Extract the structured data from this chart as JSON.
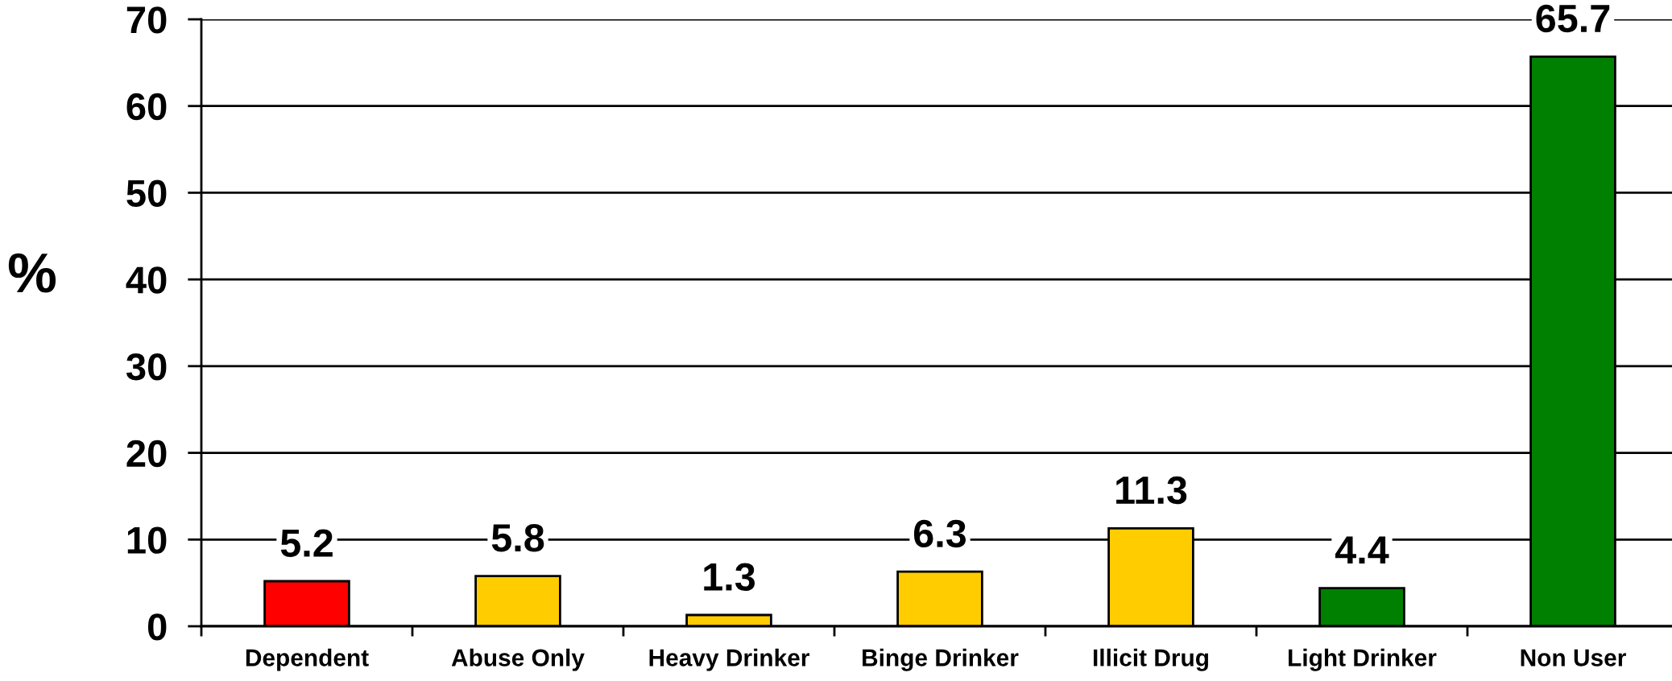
{
  "chart_data": {
    "type": "bar",
    "ylabel": "%",
    "categories": [
      "Dependent",
      "Abuse Only",
      "Heavy Drinker",
      "Binge Drinker",
      "Illicit Drug",
      "Light Drinker",
      "Non User"
    ],
    "values": [
      5.2,
      5.8,
      1.3,
      6.3,
      11.3,
      4.4,
      65.7
    ],
    "colors": [
      "#ff0000",
      "#ffcc00",
      "#ffcc00",
      "#ffcc00",
      "#ffcc00",
      "#008000",
      "#008000"
    ],
    "ylim": [
      0,
      70
    ],
    "yticks": [
      0,
      10,
      20,
      30,
      40,
      50,
      60,
      70
    ],
    "grid": "y",
    "data_labels": true
  }
}
